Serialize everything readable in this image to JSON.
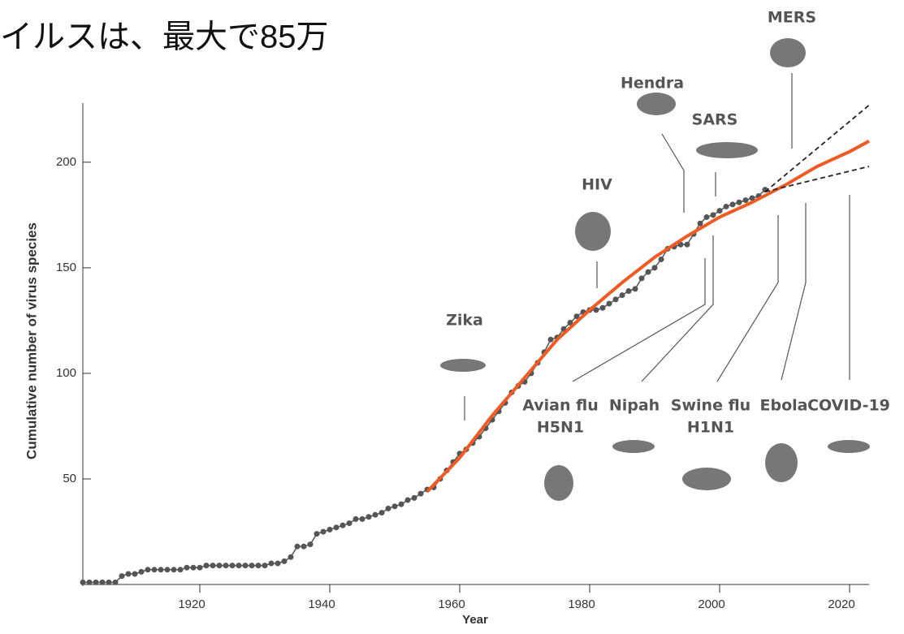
{
  "chart_data": {
    "type": "scatter",
    "title": "イルスは、最大で85万",
    "xlabel": "Year",
    "ylabel": "Cumulative number of virus species",
    "xlim": [
      1902,
      2023
    ],
    "ylim": [
      0,
      228
    ],
    "xticks": [
      1920,
      1940,
      1960,
      1980,
      2000,
      2020
    ],
    "yticks": [
      50,
      100,
      150,
      200
    ],
    "series": [
      {
        "color": "#555555",
        "style": "points",
        "x": [
          1902,
          1903,
          1904,
          1905,
          1906,
          1907,
          1908,
          1909,
          1910,
          1911,
          1912,
          1913,
          1914,
          1915,
          1916,
          1917,
          1918,
          1919,
          1920,
          1921,
          1922,
          1923,
          1924,
          1925,
          1926,
          1927,
          1928,
          1929,
          1930,
          1931,
          1932,
          1933,
          1934,
          1935,
          1936,
          1937,
          1938,
          1939,
          1940,
          1941,
          1942,
          1943,
          1944,
          1945,
          1946,
          1947,
          1948,
          1949,
          1950,
          1951,
          1952,
          1953,
          1954,
          1955,
          1956,
          1957,
          1958,
          1959,
          1960,
          1961,
          1962,
          1963,
          1964,
          1965,
          1966,
          1967,
          1968,
          1969,
          1970,
          1971,
          1972,
          1973,
          1974,
          1975,
          1976,
          1977,
          1978,
          1979,
          1980,
          1981,
          1982,
          1983,
          1984,
          1985,
          1986,
          1987,
          1988,
          1989,
          1990,
          1991,
          1992,
          1993,
          1994,
          1995,
          1996,
          1997,
          1998,
          1999,
          2000,
          2001,
          2002,
          2003,
          2004,
          2005,
          2006,
          2007
        ],
        "values": [
          1,
          1,
          1,
          1,
          1,
          1,
          4,
          5,
          5,
          6,
          7,
          7,
          7,
          7,
          7,
          7,
          8,
          8,
          8,
          9,
          9,
          9,
          9,
          9,
          9,
          9,
          9,
          9,
          9,
          10,
          10,
          11,
          13,
          18,
          18,
          19,
          24,
          25,
          26,
          27,
          28,
          29,
          31,
          31,
          32,
          33,
          34,
          36,
          37,
          38,
          40,
          41,
          43,
          45,
          46,
          50,
          54,
          58,
          62,
          64,
          67,
          70,
          74,
          78,
          82,
          86,
          91,
          94,
          96,
          100,
          105,
          110,
          116,
          117,
          121,
          124,
          127,
          129,
          130,
          130,
          131,
          133,
          135,
          137,
          139,
          140,
          145,
          148,
          150,
          154,
          159,
          160,
          161,
          161,
          166,
          171,
          174,
          175,
          177,
          179,
          180,
          181,
          182,
          183,
          184,
          187
        ]
      },
      {
        "color": "#f05a23",
        "style": "line",
        "x": [
          1955,
          1960,
          1965,
          1970,
          1975,
          1980,
          1985,
          1990,
          1995,
          2000,
          2005,
          2010,
          2015,
          2020,
          2023
        ],
        "values": [
          44,
          60,
          80,
          98,
          116,
          130,
          143,
          155,
          165,
          174,
          181,
          189,
          198,
          205,
          210
        ]
      },
      {
        "color": "#222222",
        "style": "dashed",
        "x": [
          2007,
          2023
        ],
        "values": [
          186,
          227
        ]
      },
      {
        "color": "#222222",
        "style": "dashed",
        "x": [
          2007,
          2023
        ],
        "values": [
          186,
          198
        ]
      }
    ],
    "annotations": [
      {
        "lines": [
          "Zika"
        ]
      },
      {
        "lines": [
          "HIV"
        ]
      },
      {
        "lines": [
          "Hendra"
        ]
      },
      {
        "lines": [
          "SARS"
        ]
      },
      {
        "lines": [
          "MERS"
        ]
      },
      {
        "lines": [
          "Avian flu",
          "H5N1"
        ]
      },
      {
        "lines": [
          "Nipah"
        ]
      },
      {
        "lines": [
          "Swine flu",
          "H1N1"
        ]
      },
      {
        "lines": [
          "Ebola"
        ]
      },
      {
        "lines": [
          "COVID-19"
        ]
      }
    ]
  }
}
